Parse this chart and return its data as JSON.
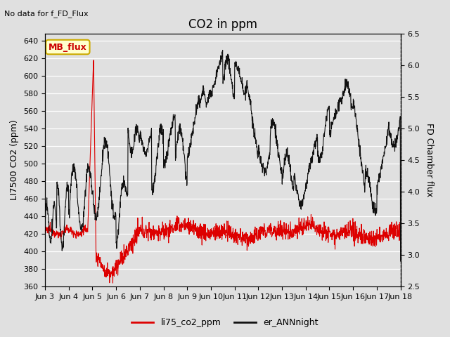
{
  "title": "CO2 in ppm",
  "top_left_text": "No data for f_FD_Flux",
  "ylabel_left": "LI7500 CO2 (ppm)",
  "ylabel_right": "FD Chamber flux",
  "ylim_left": [
    360,
    648
  ],
  "ylim_right": [
    2.5,
    6.5
  ],
  "yticks_left": [
    360,
    380,
    400,
    420,
    440,
    460,
    480,
    500,
    520,
    540,
    560,
    580,
    600,
    620,
    640
  ],
  "yticks_right": [
    2.5,
    3.0,
    3.5,
    4.0,
    4.5,
    5.0,
    5.5,
    6.0,
    6.5
  ],
  "xtick_labels": [
    "Jun 3",
    "Jun 4",
    "Jun 5",
    "Jun 6",
    "Jun 7",
    "Jun 8",
    "Jun 9",
    "Jun 10",
    "Jun 11",
    "Jun 12",
    "Jun 13",
    "Jun 14",
    "Jun 15",
    "Jun 16",
    "Jun 17",
    "Jun 18"
  ],
  "legend_labels": [
    "li75_co2_ppm",
    "er_ANNnight"
  ],
  "line_color_red": "#dd0000",
  "line_color_black": "#111111",
  "background_color": "#e0e0e0",
  "grid_color": "#ffffff",
  "box_color": "#ffffcc",
  "box_edge_color": "#ccaa00",
  "box_text": "MB_flux",
  "box_text_color": "#cc0000",
  "title_fontsize": 12,
  "label_fontsize": 9,
  "tick_fontsize": 8
}
